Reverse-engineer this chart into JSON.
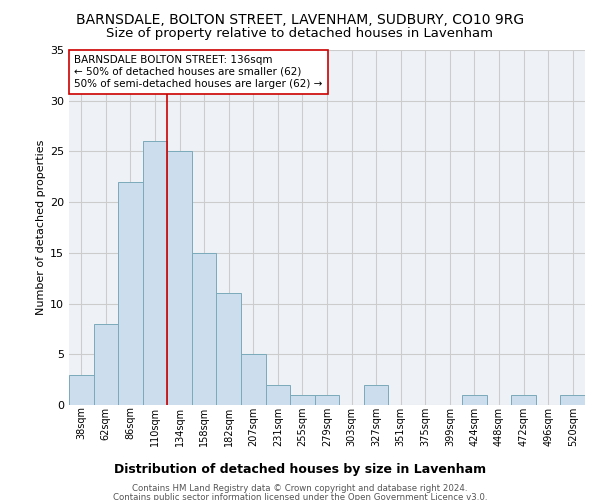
{
  "title": "BARNSDALE, BOLTON STREET, LAVENHAM, SUDBURY, CO10 9RG",
  "subtitle": "Size of property relative to detached houses in Lavenham",
  "xlabel": "Distribution of detached houses by size in Lavenham",
  "ylabel": "Number of detached properties",
  "footer1": "Contains HM Land Registry data © Crown copyright and database right 2024.",
  "footer2": "Contains public sector information licensed under the Open Government Licence v3.0.",
  "bar_labels": [
    "38sqm",
    "62sqm",
    "86sqm",
    "110sqm",
    "134sqm",
    "158sqm",
    "182sqm",
    "207sqm",
    "231sqm",
    "255sqm",
    "279sqm",
    "303sqm",
    "327sqm",
    "351sqm",
    "375sqm",
    "399sqm",
    "424sqm",
    "448sqm",
    "472sqm",
    "496sqm",
    "520sqm"
  ],
  "bar_values": [
    3,
    8,
    22,
    26,
    25,
    15,
    11,
    5,
    2,
    1,
    1,
    0,
    2,
    0,
    0,
    0,
    1,
    0,
    1,
    0,
    1
  ],
  "bar_color": "#ccdded",
  "bar_edge_color": "#7aaabb",
  "bar_edge_width": 0.7,
  "ylim": [
    0,
    35
  ],
  "yticks": [
    0,
    5,
    10,
    15,
    20,
    25,
    30,
    35
  ],
  "red_line_color": "#cc0000",
  "annotation_text1": "BARNSDALE BOLTON STREET: 136sqm",
  "annotation_text2": "← 50% of detached houses are smaller (62)",
  "annotation_text3": "50% of semi-detached houses are larger (62) →",
  "bg_color": "#eef2f7",
  "grid_color": "#cccccc",
  "title_fontsize": 10,
  "subtitle_fontsize": 9.5,
  "ann_fontsize": 7.5,
  "ylabel_fontsize": 8,
  "ytick_fontsize": 8,
  "xtick_fontsize": 7
}
